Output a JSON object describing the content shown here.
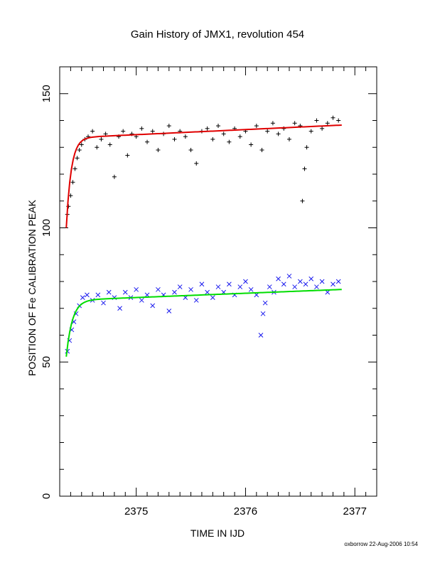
{
  "chart_data": {
    "type": "scatter",
    "title": "Gain History of JMX1, revolution 454",
    "xlabel": "TIME IN IJD",
    "ylabel": "POSITION OF Fe CALIBRATION PEAK",
    "xlim": [
      2374.3,
      2377.2
    ],
    "ylim": [
      0,
      160
    ],
    "x_ticks": [
      2375,
      2376,
      2377
    ],
    "y_ticks": [
      0,
      50,
      100,
      150
    ],
    "grid": false,
    "series": [
      {
        "marker": "plus",
        "color": "#000000",
        "points": [
          [
            2374.37,
            105
          ],
          [
            2374.38,
            108
          ],
          [
            2374.4,
            112
          ],
          [
            2374.42,
            117
          ],
          [
            2374.44,
            122
          ],
          [
            2374.46,
            126
          ],
          [
            2374.48,
            129
          ],
          [
            2374.5,
            131
          ],
          [
            2374.53,
            133
          ],
          [
            2374.56,
            134
          ],
          [
            2374.6,
            136
          ],
          [
            2374.64,
            130
          ],
          [
            2374.68,
            133
          ],
          [
            2374.72,
            135
          ],
          [
            2374.76,
            131
          ],
          [
            2374.8,
            119
          ],
          [
            2374.84,
            134
          ],
          [
            2374.88,
            136
          ],
          [
            2374.92,
            127
          ],
          [
            2374.96,
            135
          ],
          [
            2375.0,
            134
          ],
          [
            2375.05,
            137
          ],
          [
            2375.1,
            132
          ],
          [
            2375.15,
            136
          ],
          [
            2375.2,
            129
          ],
          [
            2375.25,
            135
          ],
          [
            2375.3,
            138
          ],
          [
            2375.35,
            133
          ],
          [
            2375.4,
            136
          ],
          [
            2375.45,
            134
          ],
          [
            2375.5,
            129
          ],
          [
            2375.55,
            124
          ],
          [
            2375.6,
            136
          ],
          [
            2375.65,
            137
          ],
          [
            2375.7,
            133
          ],
          [
            2375.75,
            138
          ],
          [
            2375.8,
            135
          ],
          [
            2375.85,
            132
          ],
          [
            2375.9,
            137
          ],
          [
            2375.95,
            134
          ],
          [
            2376.0,
            136
          ],
          [
            2376.05,
            131
          ],
          [
            2376.1,
            138
          ],
          [
            2376.15,
            129
          ],
          [
            2376.2,
            136
          ],
          [
            2376.25,
            139
          ],
          [
            2376.3,
            135
          ],
          [
            2376.35,
            137
          ],
          [
            2376.4,
            133
          ],
          [
            2376.45,
            139
          ],
          [
            2376.5,
            138
          ],
          [
            2376.52,
            110
          ],
          [
            2376.54,
            122
          ],
          [
            2376.56,
            130
          ],
          [
            2376.6,
            136
          ],
          [
            2376.65,
            140
          ],
          [
            2376.7,
            137
          ],
          [
            2376.75,
            139
          ],
          [
            2376.8,
            141
          ],
          [
            2376.85,
            140
          ]
        ]
      },
      {
        "marker": "cross",
        "color": "#1a1aee",
        "points": [
          [
            2374.37,
            54
          ],
          [
            2374.39,
            58
          ],
          [
            2374.41,
            62
          ],
          [
            2374.43,
            65
          ],
          [
            2374.45,
            68
          ],
          [
            2374.48,
            71
          ],
          [
            2374.51,
            74
          ],
          [
            2374.55,
            75
          ],
          [
            2374.6,
            73
          ],
          [
            2374.65,
            75
          ],
          [
            2374.7,
            72
          ],
          [
            2374.75,
            76
          ],
          [
            2374.8,
            74
          ],
          [
            2374.85,
            70
          ],
          [
            2374.9,
            76
          ],
          [
            2374.95,
            74
          ],
          [
            2375.0,
            77
          ],
          [
            2375.05,
            73
          ],
          [
            2375.1,
            75
          ],
          [
            2375.15,
            71
          ],
          [
            2375.2,
            77
          ],
          [
            2375.25,
            75
          ],
          [
            2375.3,
            69
          ],
          [
            2375.35,
            76
          ],
          [
            2375.4,
            78
          ],
          [
            2375.45,
            74
          ],
          [
            2375.5,
            77
          ],
          [
            2375.55,
            73
          ],
          [
            2375.6,
            79
          ],
          [
            2375.65,
            76
          ],
          [
            2375.7,
            74
          ],
          [
            2375.75,
            78
          ],
          [
            2375.8,
            76
          ],
          [
            2375.85,
            79
          ],
          [
            2375.9,
            75
          ],
          [
            2375.95,
            78
          ],
          [
            2376.0,
            80
          ],
          [
            2376.05,
            77
          ],
          [
            2376.1,
            75
          ],
          [
            2376.14,
            60
          ],
          [
            2376.16,
            68
          ],
          [
            2376.18,
            72
          ],
          [
            2376.22,
            78
          ],
          [
            2376.26,
            76
          ],
          [
            2376.3,
            81
          ],
          [
            2376.35,
            79
          ],
          [
            2376.4,
            82
          ],
          [
            2376.45,
            78
          ],
          [
            2376.5,
            80
          ],
          [
            2376.55,
            79
          ],
          [
            2376.6,
            81
          ],
          [
            2376.65,
            78
          ],
          [
            2376.7,
            80
          ],
          [
            2376.75,
            76
          ],
          [
            2376.8,
            79
          ],
          [
            2376.85,
            80
          ]
        ]
      }
    ],
    "fit_curves": [
      {
        "color": "#e00000",
        "base": 100,
        "rise": 33.5,
        "tau": 0.045,
        "slope": 1.9,
        "x0": 2374.36,
        "x1": 2376.88
      },
      {
        "color": "#00dd00",
        "base": 52,
        "rise": 21.0,
        "tau": 0.055,
        "slope": 1.6,
        "x0": 2374.36,
        "x1": 2376.88
      }
    ],
    "footer": "oxborrow 22-Aug-2006 10:54"
  }
}
